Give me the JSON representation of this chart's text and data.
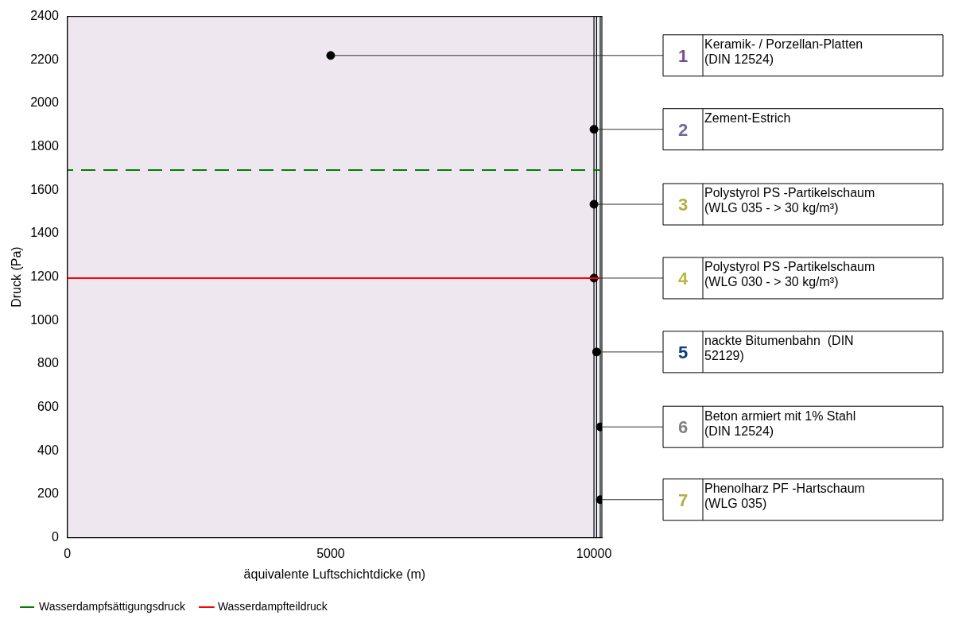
{
  "chart_data": {
    "type": "line",
    "xlabel": "äquivalente Luftschichtdicke (m)",
    "ylabel": "Druck (Pa)",
    "xlim": [
      0,
      10150
    ],
    "xticks": [
      0,
      5000,
      10000
    ],
    "ylim": [
      0,
      2400
    ],
    "yticks": [
      0,
      200,
      400,
      600,
      800,
      1000,
      1200,
      1400,
      1600,
      1800,
      2000,
      2200,
      2400
    ],
    "legend": "bottom",
    "series": [
      {
        "name": "Wasserdampfsättigungsdruck",
        "color": "#008000",
        "line_style": "dashed",
        "x": [
          0,
          10120
        ],
        "values": [
          1692,
          1692
        ]
      },
      {
        "name": "Wasserdampfteildruck",
        "color": "#ff0000",
        "line_style": "solid",
        "x": [
          0,
          10120
        ],
        "values": [
          1195,
          1195
        ]
      },
      {
        "type": "scatter",
        "color": "#000000",
        "marker": "circle",
        "x": [
          5000,
          10000,
          10000,
          10000,
          10050,
          10120,
          10120
        ],
        "values": [
          2220,
          1880,
          1535,
          1195,
          855,
          510,
          175
        ]
      }
    ],
    "bands": [
      {
        "axis": "x",
        "from": 0,
        "to": 10000,
        "color": "#efe7ef"
      },
      {
        "axis": "x",
        "from": 10000,
        "to": 10120,
        "color": "#e8eef4"
      }
    ],
    "ref_lines": [
      {
        "axis": "x",
        "value": 10000
      },
      {
        "axis": "x",
        "value": 10050
      },
      {
        "axis": "x",
        "value": 10120
      }
    ],
    "annotations": [
      {
        "text": "1",
        "x": 5000,
        "y": 2220
      },
      "Keramik- / Porzellan-Platten\n(DIN 12524)",
      {
        "text": "2",
        "x": 10000,
        "y": 1880
      },
      "Zement-Estrich",
      {
        "text": "3",
        "x": 10000,
        "y": 1535
      },
      "Polystyrol PS -Partikelschaum\n(WLG 035 - > 30 kg/m³)",
      {
        "text": "4",
        "x": 10000,
        "y": 1195
      },
      "Polystyrol PS -Partikelschaum\n(WLG 030 - > 30 kg/m³)",
      {
        "text": "5",
        "x": 10050,
        "y": 855
      },
      "nackte Bitumenbahn  (DIN\n52129)",
      {
        "text": "6",
        "x": 10120,
        "y": 510
      },
      "Beton armiert mit 1% Stahl\n(DIN 12524)",
      {
        "text": "7",
        "x": 10120,
        "y": 175
      },
      "Phenolharz PF -Hartschaum\n(WLG 035)"
    ]
  }
}
